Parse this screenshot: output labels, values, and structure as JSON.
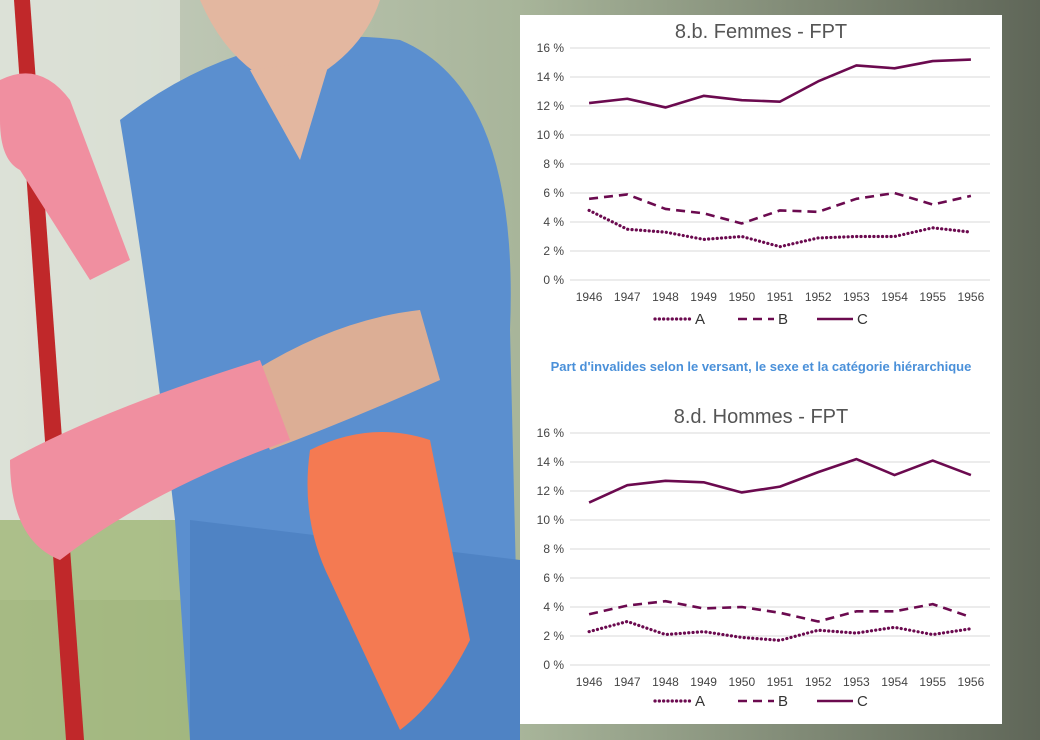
{
  "caption": "Part d'invalides selon le versant, le sexe et la catégorie hiérarchique",
  "colors": {
    "series": "#6b0a4f",
    "caption": "#4a90d9",
    "grid": "#d9d9d9"
  },
  "chart_data": [
    {
      "type": "line",
      "title": "8.b. Femmes - FPT",
      "categories": [
        "1946",
        "1947",
        "1948",
        "1949",
        "1950",
        "1951",
        "1952",
        "1953",
        "1954",
        "1955",
        "1956"
      ],
      "ylim": [
        0,
        16
      ],
      "yticks": [
        "0 %",
        "2 %",
        "4 %",
        "6 %",
        "8 %",
        "10 %",
        "12 %",
        "14 %",
        "16 %"
      ],
      "legend_position": "bottom",
      "grid": true,
      "series": [
        {
          "name": "A",
          "style": "dotted",
          "values": [
            4.8,
            3.5,
            3.3,
            2.8,
            3.0,
            2.3,
            2.9,
            3.0,
            3.0,
            3.6,
            3.3
          ]
        },
        {
          "name": "B",
          "style": "dashed",
          "values": [
            5.6,
            5.9,
            4.9,
            4.6,
            3.9,
            4.8,
            4.7,
            5.6,
            6.0,
            5.2,
            5.8
          ]
        },
        {
          "name": "C",
          "style": "solid",
          "values": [
            12.2,
            12.5,
            11.9,
            12.7,
            12.4,
            12.3,
            13.7,
            14.8,
            14.6,
            15.1,
            15.2
          ]
        }
      ]
    },
    {
      "type": "line",
      "title": "8.d. Hommes - FPT",
      "categories": [
        "1946",
        "1947",
        "1948",
        "1949",
        "1950",
        "1951",
        "1952",
        "1953",
        "1954",
        "1955",
        "1956"
      ],
      "ylim": [
        0,
        16
      ],
      "yticks": [
        "0 %",
        "2 %",
        "4 %",
        "6 %",
        "8 %",
        "10 %",
        "12 %",
        "14 %",
        "16 %"
      ],
      "legend_position": "bottom",
      "grid": true,
      "series": [
        {
          "name": "A",
          "style": "dotted",
          "values": [
            2.3,
            3.0,
            2.1,
            2.3,
            1.9,
            1.7,
            2.4,
            2.2,
            2.6,
            2.1,
            2.5
          ]
        },
        {
          "name": "B",
          "style": "dashed",
          "values": [
            3.5,
            4.1,
            4.4,
            3.9,
            4.0,
            3.6,
            3.0,
            3.7,
            3.7,
            4.2,
            3.3
          ]
        },
        {
          "name": "C",
          "style": "solid",
          "values": [
            11.2,
            12.4,
            12.7,
            12.6,
            11.9,
            12.3,
            13.3,
            14.2,
            13.1,
            14.1,
            13.1
          ]
        }
      ]
    }
  ]
}
